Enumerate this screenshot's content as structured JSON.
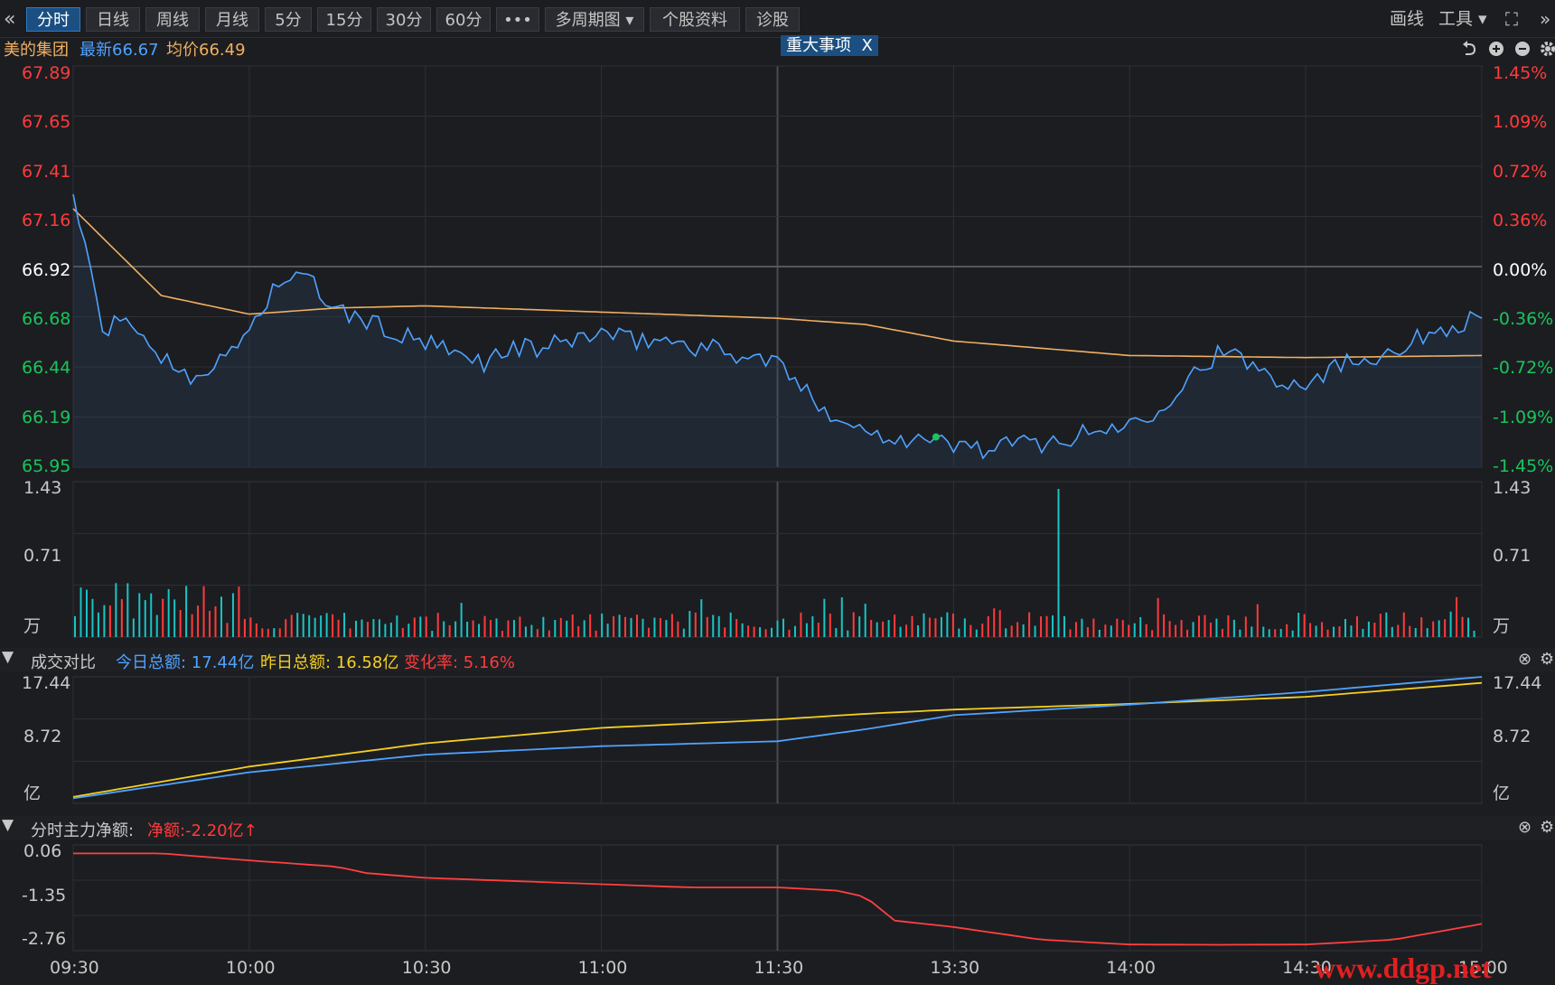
{
  "toolbar": {
    "collapse_icon": "double-chevron-left-icon",
    "tabs": [
      "分时",
      "日线",
      "周线",
      "月线",
      "5分",
      "15分",
      "30分",
      "60分",
      "•••",
      "多周期图",
      "个股资料",
      "诊股"
    ],
    "active_tab": "分时",
    "draw_label": "画线",
    "tools_label": "工具",
    "fullscreen_icon": "fullscreen-icon",
    "expand_icon": "double-chevron-right-icon"
  },
  "info": {
    "stock_name": "美的集团",
    "latest": "最新66.67",
    "avg": "均价66.49",
    "event_badge": "重大事项",
    "event_close": "X"
  },
  "price_axis": {
    "left": [
      "67.89",
      "67.65",
      "67.41",
      "67.16",
      "66.92",
      "66.68",
      "66.44",
      "66.19",
      "65.95"
    ],
    "right": [
      "1.45%",
      "1.09%",
      "0.72%",
      "0.36%",
      "0.00%",
      "-0.36%",
      "-0.72%",
      "-1.09%",
      "-1.45%"
    ]
  },
  "volume_axis": {
    "left": [
      "1.43",
      "0.71",
      "万"
    ],
    "right": [
      "1.43",
      "0.71",
      "万"
    ]
  },
  "turnover_panel": {
    "title": "成交对比",
    "today": "今日总额: 17.44亿",
    "yesterday": "昨日总额: 16.58亿",
    "change": "变化率: 5.16%",
    "axis_left": [
      "17.44",
      "8.72",
      "亿"
    ],
    "axis_right": [
      "17.44",
      "8.72",
      "亿"
    ]
  },
  "netflow_panel": {
    "title": "分时主力净额:",
    "net": "净额:-2.20亿",
    "axis_left": [
      "0.06",
      "-1.35",
      "-2.76"
    ]
  },
  "time_axis": [
    "09:30",
    "10:00",
    "10:30",
    "11:00",
    "11:30",
    "13:30",
    "14:00",
    "14:30",
    "15:00"
  ],
  "watermark": "www.ddgp.net",
  "colors": {
    "up": "#ff3b3b",
    "down": "#19c45c",
    "price_line": "#4fa3ff",
    "avg_line": "#f0b060",
    "yesterday_line": "#f5d020",
    "net_line": "#ff4040",
    "flat": "#ffffff"
  },
  "chart_data": [
    {
      "type": "line",
      "title": "美的集团",
      "x_domain": [
        "09:30",
        "15:00"
      ],
      "ylim": [
        65.95,
        67.89
      ],
      "prev_close": 66.92,
      "series": [
        {
          "name": "最新",
          "x": [
            "09:30",
            "09:35",
            "09:40",
            "09:45",
            "09:50",
            "09:55",
            "10:00",
            "10:05",
            "10:10",
            "10:15",
            "10:20",
            "10:25",
            "10:30",
            "10:35",
            "10:40",
            "10:45",
            "10:50",
            "10:55",
            "11:00",
            "11:05",
            "11:10",
            "11:15",
            "11:20",
            "11:25",
            "11:30",
            "13:05",
            "13:10",
            "13:15",
            "13:20",
            "13:25",
            "13:30",
            "13:35",
            "13:40",
            "13:45",
            "13:50",
            "13:55",
            "14:00",
            "14:05",
            "14:10",
            "14:15",
            "14:20",
            "14:25",
            "14:30",
            "14:35",
            "14:40",
            "14:45",
            "14:50",
            "14:55",
            "15:00"
          ],
          "values": [
            67.27,
            66.62,
            66.65,
            66.48,
            66.4,
            66.45,
            66.62,
            66.85,
            66.86,
            66.7,
            66.66,
            66.59,
            66.55,
            66.49,
            66.46,
            66.53,
            66.52,
            66.57,
            66.6,
            66.56,
            66.57,
            66.54,
            66.52,
            66.48,
            66.46,
            66.3,
            66.2,
            66.12,
            66.1,
            66.08,
            66.06,
            66.04,
            66.06,
            66.07,
            66.09,
            66.13,
            66.16,
            66.24,
            66.38,
            66.5,
            66.46,
            66.38,
            66.36,
            66.44,
            66.48,
            66.52,
            66.58,
            66.64,
            66.67
          ]
        },
        {
          "name": "均价",
          "x": [
            "09:30",
            "09:45",
            "10:00",
            "10:15",
            "10:30",
            "11:00",
            "11:30",
            "13:15",
            "13:30",
            "14:00",
            "14:30",
            "15:00"
          ],
          "values": [
            67.2,
            66.78,
            66.69,
            66.72,
            66.73,
            66.7,
            66.67,
            66.64,
            66.56,
            66.49,
            66.48,
            66.49
          ]
        }
      ]
    },
    {
      "type": "bar",
      "title": "成交量",
      "ylim": [
        0,
        1.43
      ],
      "y_unit": "万",
      "x_domain": [
        "09:30",
        "15:00"
      ],
      "notable": [
        {
          "x": "13:18",
          "value": 1.43
        }
      ]
    },
    {
      "type": "line",
      "title": "成交对比",
      "ylim": [
        0,
        17.44
      ],
      "y_unit": "亿",
      "series": [
        {
          "name": "今日总额",
          "x": [
            "09:30",
            "10:00",
            "10:30",
            "11:00",
            "11:30",
            "13:15",
            "13:30",
            "14:00",
            "14:30",
            "15:00"
          ],
          "values": [
            0.2,
            3.9,
            6.4,
            7.6,
            8.3,
            10.0,
            12.0,
            13.5,
            15.3,
            17.44
          ]
        },
        {
          "name": "昨日总额",
          "x": [
            "09:30",
            "10:00",
            "10:30",
            "11:00",
            "11:30",
            "13:15",
            "13:30",
            "14:00",
            "14:30",
            "15:00"
          ],
          "values": [
            0.4,
            4.7,
            8.0,
            10.2,
            11.4,
            12.2,
            12.8,
            13.6,
            14.6,
            16.58
          ]
        }
      ]
    },
    {
      "type": "line",
      "title": "分时主力净额",
      "ylim": [
        -2.76,
        0.06
      ],
      "series": [
        {
          "name": "净额",
          "x": [
            "09:30",
            "09:45",
            "10:00",
            "10:15",
            "10:20",
            "10:30",
            "10:45",
            "11:00",
            "11:15",
            "11:30",
            "13:10",
            "13:15",
            "13:20",
            "13:30",
            "13:45",
            "14:00",
            "14:15",
            "14:30",
            "14:45",
            "15:00"
          ],
          "values": [
            0.02,
            0.02,
            -0.2,
            -0.4,
            -0.6,
            -0.75,
            -0.85,
            -0.95,
            -1.05,
            -1.05,
            -1.15,
            -1.35,
            -2.1,
            -2.3,
            -2.7,
            -2.85,
            -2.86,
            -2.85,
            -2.7,
            -2.2
          ]
        }
      ]
    }
  ]
}
